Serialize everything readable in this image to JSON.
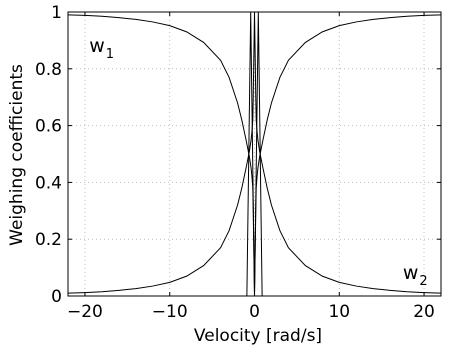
{
  "chart_data": {
    "type": "line",
    "xlabel": "Velocity [rad/s]",
    "ylabel": "Weighing coefficients",
    "xlim": [
      -22,
      22
    ],
    "ylim": [
      0,
      1
    ],
    "grid": true,
    "x_ticks": [
      -20,
      -10,
      0,
      10,
      20
    ],
    "x_tick_labels": [
      "−20",
      "−10",
      "0",
      "10",
      "20"
    ],
    "y_ticks": [
      0,
      0.2,
      0.4,
      0.6,
      0.8,
      1
    ],
    "y_tick_labels": [
      "0",
      "0.2",
      "0.4",
      "0.6",
      "0.8",
      "1"
    ],
    "annotations": [
      {
        "text": "w",
        "subscript": "1",
        "x": -19.5,
        "y": 0.86
      },
      {
        "text": "w",
        "subscript": "2",
        "x": 17.5,
        "y": 0.06
      }
    ],
    "series": [
      {
        "x": [
          -22,
          -20,
          -18,
          -16,
          -14,
          -12,
          -10,
          -8,
          -6,
          -4,
          -3,
          -2,
          -1.5,
          -1,
          -0.8,
          -0.6,
          -0.5,
          -0.4,
          -0.3,
          -0.2,
          -0.15,
          -0.1,
          -0.05,
          0
        ],
        "values": [
          0.99,
          0.988,
          0.985,
          0.98,
          0.974,
          0.965,
          0.952,
          0.93,
          0.893,
          0.83,
          0.77,
          0.68,
          0.62,
          0.55,
          0.52,
          0.49,
          0.47,
          0.45,
          0.42,
          0.38,
          0.3,
          0.2,
          0.1,
          0
        ]
      },
      {
        "x": [
          -22,
          -20,
          -18,
          -16,
          -14,
          -12,
          -10,
          -8,
          -6,
          -4,
          -3,
          -2,
          -1.5,
          -1,
          -0.8,
          -0.6,
          -0.5,
          -0.4,
          -0.3,
          -0.2,
          -0.15,
          -0.1,
          -0.05,
          0
        ],
        "values": [
          0.01,
          0.012,
          0.015,
          0.02,
          0.026,
          0.035,
          0.048,
          0.07,
          0.107,
          0.17,
          0.23,
          0.32,
          0.38,
          0.45,
          0.48,
          0.51,
          0.53,
          0.55,
          0.58,
          0.62,
          0.7,
          0.8,
          0.9,
          1
        ]
      },
      {
        "x": [
          0,
          0.05,
          0.1,
          0.15,
          0.2,
          0.3,
          0.4,
          0.5,
          0.6,
          0.8,
          1,
          1.5,
          2,
          3,
          4,
          6,
          8,
          10,
          12,
          14,
          16,
          18,
          20,
          22
        ],
        "values": [
          1,
          0.9,
          0.8,
          0.7,
          0.62,
          0.58,
          0.55,
          0.53,
          0.51,
          0.48,
          0.45,
          0.38,
          0.32,
          0.23,
          0.17,
          0.107,
          0.07,
          0.048,
          0.035,
          0.026,
          0.02,
          0.015,
          0.012,
          0.01
        ]
      },
      {
        "x": [
          0,
          0.05,
          0.1,
          0.15,
          0.2,
          0.3,
          0.4,
          0.5,
          0.6,
          0.8,
          1,
          1.5,
          2,
          3,
          4,
          6,
          8,
          10,
          12,
          14,
          16,
          18,
          20,
          22
        ],
        "values": [
          0,
          0.1,
          0.2,
          0.3,
          0.38,
          0.42,
          0.45,
          0.47,
          0.49,
          0.52,
          0.55,
          0.62,
          0.68,
          0.77,
          0.83,
          0.893,
          0.93,
          0.952,
          0.965,
          0.974,
          0.98,
          0.985,
          0.988,
          0.99
        ]
      },
      {
        "x": [
          -0.9,
          -0.45,
          0
        ],
        "values": [
          0,
          1,
          0
        ]
      },
      {
        "x": [
          0,
          0.45,
          0.9
        ],
        "values": [
          0,
          1,
          0
        ]
      }
    ]
  }
}
